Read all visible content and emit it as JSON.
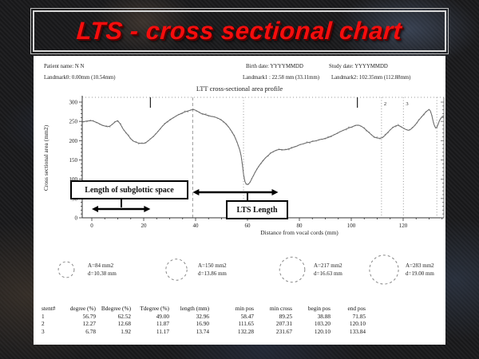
{
  "title": {
    "text": "LTS - cross sectional chart"
  },
  "panel": {
    "header": {
      "patient": "Patient name: N N",
      "birth": "Birth date: YYYYMMDD",
      "study": "Study date: YYYYMMDD",
      "landmark0": "Landmark0: 0.00mm (10.54mm)",
      "landmark1": "Landmark1 : 22.58 mm (33.11mm)",
      "landmark2": "Landmark2: 102.35mm (112.88mm)"
    },
    "chart_title": "LTT cross-sectional area profile"
  },
  "chart_data": {
    "type": "line",
    "title": "LTT cross-sectional area profile",
    "xlabel": "Distance from vocal cords (mm)",
    "ylabel": "Cross sectional area (mm2)",
    "xlim": [
      -4,
      136
    ],
    "ylim": [
      0,
      300
    ],
    "xticks": [
      0,
      20,
      40,
      60,
      80,
      100,
      120
    ],
    "yticks": [
      0,
      50,
      100,
      150,
      200,
      250,
      300
    ],
    "grid": false,
    "landmark_ticks": [
      22.58,
      102.35
    ],
    "dashed_vlines": [
      {
        "x": 38.88,
        "label": ""
      }
    ],
    "dotted_vlines": [
      {
        "x": 58.47,
        "label": ""
      },
      {
        "x": 111.65,
        "label": "2"
      },
      {
        "x": 120.1,
        "label": "3"
      },
      {
        "x": 132.98,
        "label": ""
      }
    ],
    "annotations": [
      {
        "label": "Length of subglottic space",
        "arrow_from": 0,
        "arrow_to": 22.58
      },
      {
        "label": "LTS Length",
        "arrow_from": 38.88,
        "arrow_to": 71.85
      }
    ],
    "series": [
      {
        "name": "cross-sectional area profile",
        "points": [
          [
            -3.5,
            249
          ],
          [
            -2,
            251
          ],
          [
            0,
            252
          ],
          [
            2,
            247
          ],
          [
            4,
            240
          ],
          [
            6,
            236
          ],
          [
            7,
            238
          ],
          [
            8,
            243
          ],
          [
            9,
            249
          ],
          [
            10,
            252
          ],
          [
            11,
            243
          ],
          [
            12,
            231
          ],
          [
            13,
            222
          ],
          [
            14,
            214
          ],
          [
            15,
            205
          ],
          [
            16,
            199
          ],
          [
            17,
            196
          ],
          [
            18,
            194
          ],
          [
            19,
            193
          ],
          [
            20,
            193
          ],
          [
            21,
            196
          ],
          [
            22,
            201
          ],
          [
            23,
            207
          ],
          [
            24,
            213
          ],
          [
            25,
            220
          ],
          [
            26,
            228
          ],
          [
            27,
            236
          ],
          [
            28,
            243
          ],
          [
            29,
            249
          ],
          [
            30,
            253
          ],
          [
            31,
            258
          ],
          [
            32,
            262
          ],
          [
            33,
            266
          ],
          [
            34,
            269
          ],
          [
            35,
            272
          ],
          [
            36,
            275
          ],
          [
            37,
            277
          ],
          [
            38,
            279
          ],
          [
            39,
            281
          ],
          [
            40,
            279
          ],
          [
            41,
            275
          ],
          [
            42,
            271
          ],
          [
            43,
            269
          ],
          [
            44,
            267
          ],
          [
            45,
            265
          ],
          [
            46,
            263
          ],
          [
            47,
            262
          ],
          [
            48,
            260
          ],
          [
            49,
            257
          ],
          [
            50,
            253
          ],
          [
            51,
            248
          ],
          [
            52,
            241
          ],
          [
            53,
            233
          ],
          [
            54,
            223
          ],
          [
            55,
            211
          ],
          [
            56,
            196
          ],
          [
            57,
            176
          ],
          [
            57.5,
            162
          ],
          [
            58,
            140
          ],
          [
            58.5,
            112
          ],
          [
            59,
            94
          ],
          [
            59.5,
            88
          ],
          [
            60,
            86
          ],
          [
            60.5,
            88
          ],
          [
            61,
            93
          ],
          [
            61.5,
            99
          ],
          [
            62,
            106
          ],
          [
            63,
            119
          ],
          [
            64,
            130
          ],
          [
            65,
            140
          ],
          [
            66,
            148
          ],
          [
            67,
            156
          ],
          [
            68,
            162
          ],
          [
            69,
            168
          ],
          [
            70,
            172
          ],
          [
            71,
            175
          ],
          [
            72,
            177
          ],
          [
            73,
            177
          ],
          [
            74,
            176
          ],
          [
            75,
            177
          ],
          [
            76,
            179
          ],
          [
            77,
            181
          ],
          [
            78,
            184
          ],
          [
            79,
            186
          ],
          [
            80,
            189
          ],
          [
            81,
            191
          ],
          [
            82,
            193
          ],
          [
            83,
            195
          ],
          [
            84,
            196
          ],
          [
            85,
            198
          ],
          [
            86,
            199
          ],
          [
            87,
            201
          ],
          [
            88,
            203
          ],
          [
            89,
            204
          ],
          [
            90,
            206
          ],
          [
            91,
            208
          ],
          [
            92,
            211
          ],
          [
            93,
            214
          ],
          [
            94,
            217
          ],
          [
            95,
            221
          ],
          [
            96,
            224
          ],
          [
            97,
            227
          ],
          [
            98,
            230
          ],
          [
            99,
            233
          ],
          [
            100,
            235
          ],
          [
            101,
            238
          ],
          [
            102,
            240
          ],
          [
            103,
            240
          ],
          [
            104,
            237
          ],
          [
            105,
            232
          ],
          [
            106,
            226
          ],
          [
            107,
            220
          ],
          [
            108,
            214
          ],
          [
            109,
            209
          ],
          [
            110,
            207
          ],
          [
            111,
            206
          ],
          [
            112,
            208
          ],
          [
            113,
            214
          ],
          [
            114,
            221
          ],
          [
            115,
            228
          ],
          [
            116,
            234
          ],
          [
            117,
            238
          ],
          [
            118,
            240
          ],
          [
            119,
            237
          ],
          [
            120,
            233
          ],
          [
            121,
            229
          ],
          [
            122,
            227
          ],
          [
            123,
            230
          ],
          [
            124,
            236
          ],
          [
            125,
            244
          ],
          [
            126,
            253
          ],
          [
            127,
            261
          ],
          [
            128,
            269
          ],
          [
            129,
            276
          ],
          [
            130,
            281
          ],
          [
            130.5,
            277
          ],
          [
            131,
            266
          ],
          [
            131.5,
            252
          ],
          [
            132,
            240
          ],
          [
            132.5,
            233
          ],
          [
            133,
            235
          ],
          [
            133.5,
            243
          ],
          [
            134,
            252
          ],
          [
            134.5,
            258
          ],
          [
            135,
            262
          ],
          [
            135.7,
            264
          ]
        ]
      }
    ]
  },
  "circles": [
    {
      "area": "A=84 mm2",
      "diameter": "d=10.38 mm",
      "d": 10.38
    },
    {
      "area": "A=150 mm2",
      "diameter": "d=13.86 mm",
      "d": 13.86
    },
    {
      "area": "A=217 mm2",
      "diameter": "d=16.63 mm",
      "d": 16.63
    },
    {
      "area": "A=283 mm2",
      "diameter": "d=19.00 mm",
      "d": 19.0
    }
  ],
  "table": {
    "headers": [
      "stent#",
      "degree (%)",
      "Bdegree (%)",
      "Tdegree (%)",
      "length (mm)",
      "min pos",
      "min cross",
      "begin pos",
      "end pos"
    ],
    "rows": [
      [
        "1",
        "56.79",
        "62.52",
        "49.00",
        "32.96",
        "58.47",
        "89.25",
        "38.88",
        "71.85"
      ],
      [
        "2",
        "12.27",
        "12.68",
        "11.87",
        "16.90",
        "111.65",
        "207.31",
        "103.20",
        "120.10"
      ],
      [
        "3",
        "6.78",
        "1.92",
        "11.17",
        "13.74",
        "132.28",
        "231.67",
        "120.10",
        "133.84"
      ]
    ]
  }
}
